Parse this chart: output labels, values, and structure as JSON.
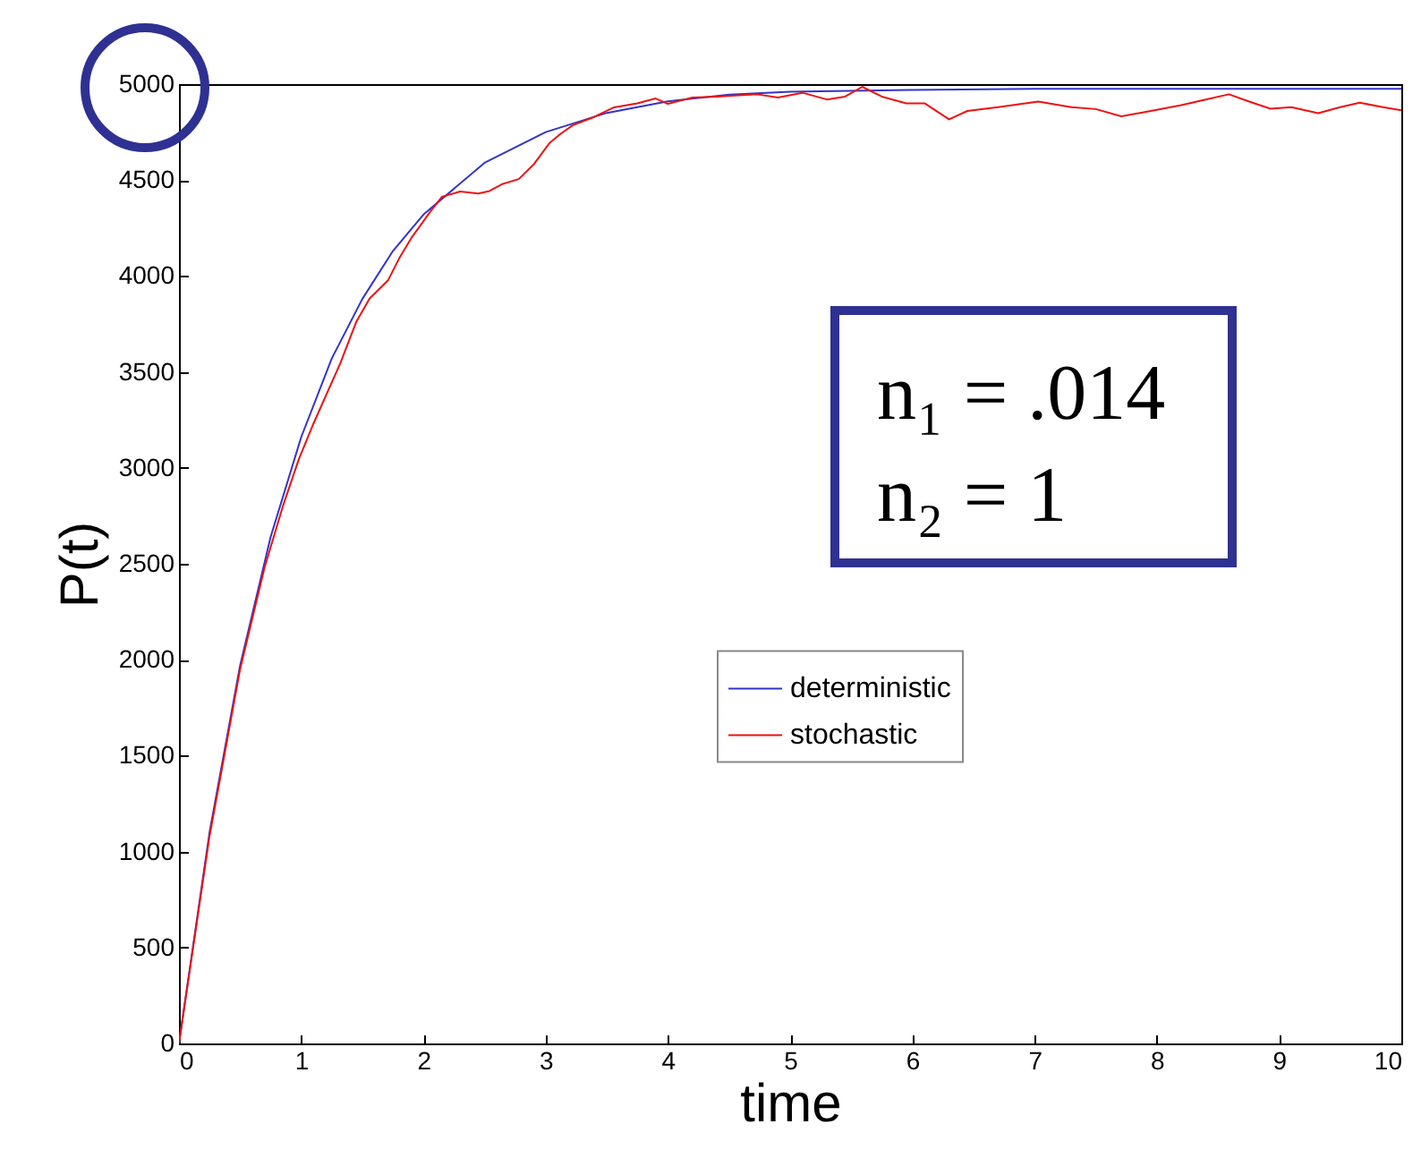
{
  "chart_data": {
    "type": "line",
    "xlabel": "time",
    "ylabel": "P(t)",
    "xlim": [
      0,
      10
    ],
    "xticks": [
      0,
      1,
      2,
      3,
      4,
      5,
      6,
      7,
      8,
      9,
      10
    ],
    "ylim": [
      0,
      5000
    ],
    "yticks": [
      0,
      500,
      1000,
      1500,
      2000,
      2500,
      3000,
      3500,
      4000,
      4500,
      5000
    ],
    "grid": false,
    "legend": "right",
    "marker": "none",
    "line_style": "solid",
    "annotations": [
      "n₁ = .014",
      "n₂ = 1"
    ],
    "series": [
      {
        "name": "deterministic",
        "color": "#3333cc",
        "x": [
          0,
          0.25,
          0.5,
          0.75,
          1,
          1.25,
          1.5,
          1.75,
          2,
          2.5,
          3,
          3.5,
          4,
          4.5,
          5,
          6,
          7,
          8,
          9,
          10
        ],
        "values": [
          0,
          1100,
          1970,
          2640,
          3160,
          3570,
          3880,
          4130,
          4320,
          4590,
          4750,
          4850,
          4910,
          4945,
          4960,
          4970,
          4975,
          4975,
          4975,
          4975
        ]
      },
      {
        "name": "stochastic",
        "color": "#ee1111",
        "x": [
          0,
          0.25,
          0.5,
          0.7,
          0.85,
          0.98,
          1.1,
          1.32,
          1.45,
          1.56,
          1.71,
          1.8,
          1.9,
          2.05,
          2.15,
          2.3,
          2.45,
          2.54,
          2.65,
          2.78,
          2.9,
          3.03,
          3.12,
          3.22,
          3.4,
          3.56,
          3.75,
          3.9,
          4.0,
          4.2,
          4.4,
          4.73,
          4.9,
          5.1,
          5.3,
          5.45,
          5.59,
          5.75,
          5.95,
          6.1,
          6.3,
          6.45,
          6.7,
          7.03,
          7.3,
          7.5,
          7.71,
          7.95,
          8.2,
          8.4,
          8.59,
          8.75,
          8.93,
          9.1,
          9.32,
          9.5,
          9.66,
          9.85,
          10
        ],
        "values": [
          0,
          1080,
          1950,
          2480,
          2800,
          3044,
          3230,
          3545,
          3760,
          3883,
          3977,
          4090,
          4197,
          4330,
          4412,
          4440,
          4430,
          4443,
          4480,
          4505,
          4580,
          4692,
          4740,
          4785,
          4830,
          4879,
          4900,
          4925,
          4897,
          4930,
          4935,
          4947,
          4930,
          4955,
          4920,
          4935,
          4986,
          4935,
          4900,
          4900,
          4816,
          4860,
          4880,
          4909,
          4880,
          4870,
          4832,
          4860,
          4890,
          4920,
          4947,
          4910,
          4872,
          4880,
          4848,
          4880,
          4903,
          4880,
          4863
        ]
      }
    ]
  }
}
